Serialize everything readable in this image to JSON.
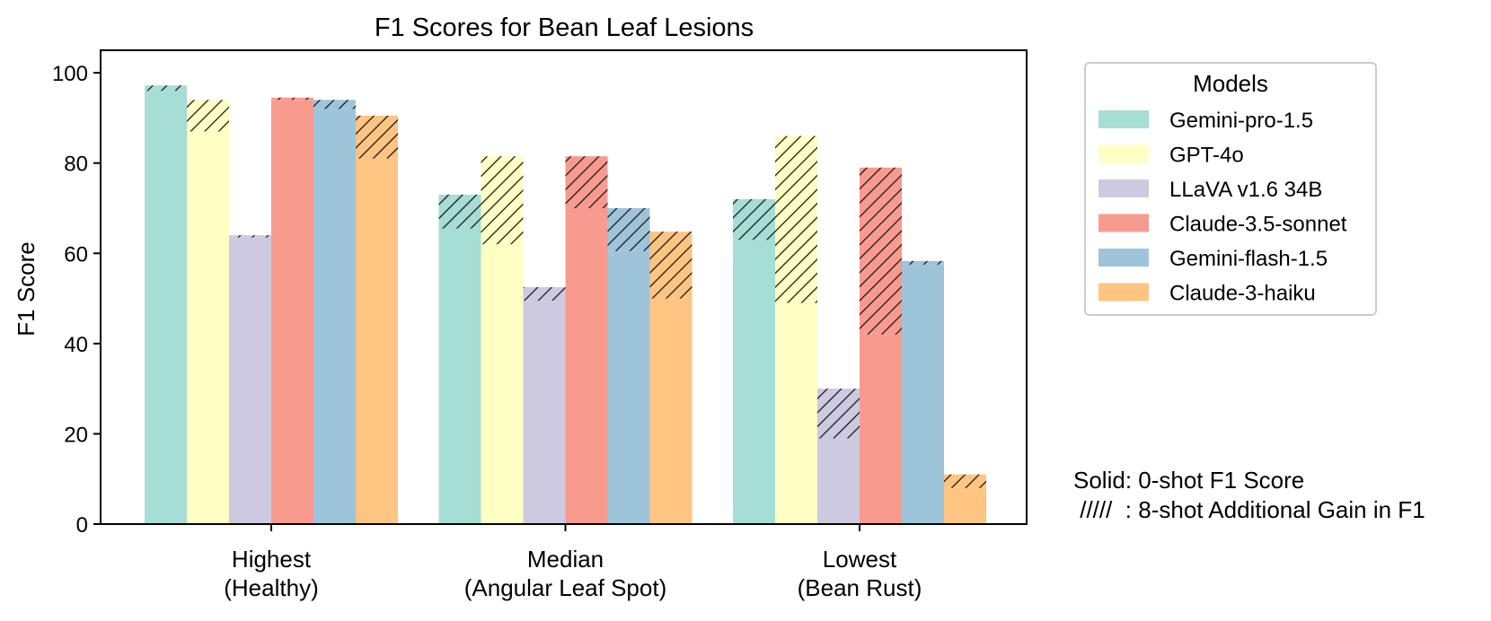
{
  "chart_data": {
    "type": "bar",
    "title": "F1 Scores for Bean Leaf Lesions",
    "xlabel": "",
    "ylabel": "F1 Score",
    "ylim": [
      0,
      105
    ],
    "yticks": [
      0,
      20,
      40,
      60,
      80,
      100
    ],
    "grid": false,
    "stacked": "each bar = solid 0-shot value + hatched 8-shot additional gain",
    "categories": [
      [
        "Highest",
        "(Healthy)"
      ],
      [
        "Median",
        "(Angular Leaf Spot)"
      ],
      [
        "Lowest",
        "(Bean Rust)"
      ]
    ],
    "series": [
      {
        "name": "Gemini-pro-1.5",
        "color": "#a6ddd4",
        "zero_shot": [
          96,
          65.5,
          63
        ],
        "eight_shot_gain": [
          1.2,
          7.5,
          9
        ]
      },
      {
        "name": "GPT-4o",
        "color": "#ffffc4",
        "zero_shot": [
          87,
          62,
          49
        ],
        "eight_shot_gain": [
          7,
          19.5,
          37
        ]
      },
      {
        "name": "LLaVA v1.6 34B",
        "color": "#ccc9e0",
        "zero_shot": [
          63.5,
          49.5,
          19
        ],
        "eight_shot_gain": [
          0.5,
          3,
          11
        ]
      },
      {
        "name": "Claude-3.5-sonnet",
        "color": "#f99a8f",
        "zero_shot": [
          94,
          70,
          42
        ],
        "eight_shot_gain": [
          0.5,
          11.5,
          37
        ]
      },
      {
        "name": "Gemini-flash-1.5",
        "color": "#9ec4da",
        "zero_shot": [
          92,
          60.5,
          57.5
        ],
        "eight_shot_gain": [
          2,
          9.5,
          0.8
        ]
      },
      {
        "name": "Claude-3-haiku",
        "color": "#fdc482",
        "zero_shot": [
          81,
          50,
          8
        ],
        "eight_shot_gain": [
          9.5,
          14.8,
          3
        ]
      }
    ],
    "legend": {
      "title": "Models",
      "placement": "outside right, top"
    },
    "annotations": {
      "solid": "Solid: 0-shot F1 Score",
      "hatch": " /////  : 8-shot Additional Gain in F1"
    }
  }
}
